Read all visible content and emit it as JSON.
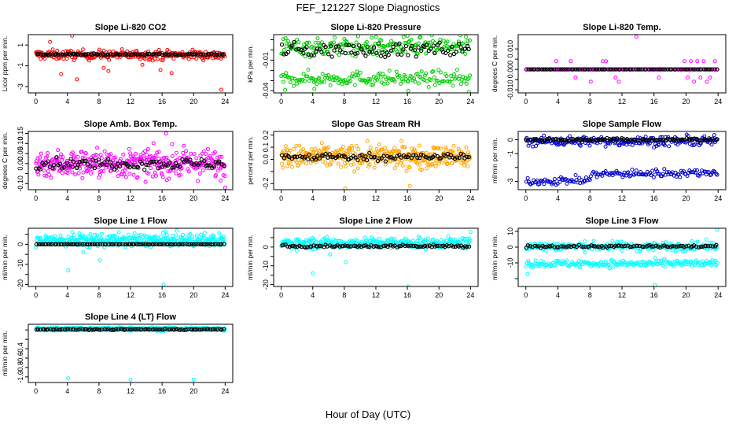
{
  "figure": {
    "title": "FEF_121227  Slope Diagnostics",
    "xlabel": "Hour of Day (UTC)",
    "x_ticks": [
      0,
      4,
      8,
      12,
      16,
      20,
      24
    ],
    "x_range": [
      0,
      24
    ]
  },
  "chart_data": [
    {
      "type": "scatter",
      "title": "Slope Li-820 CO2",
      "ylabel": "Licor ppm per min.",
      "y_ticks": [
        -3,
        -1,
        1
      ],
      "y_tick_labels": [
        "-3",
        "-1",
        "1"
      ],
      "ylim": [
        -3.6,
        2.0
      ],
      "colors": {
        "points": "#ff0000",
        "median": "#000000"
      },
      "series": [
        {
          "kind": "cloud",
          "center": 0.05,
          "spread": 0.4,
          "count": 260
        },
        {
          "kind": "median",
          "center": 0.1,
          "spread": 0.1,
          "count": 95
        },
        {
          "kind": "outliers",
          "x": [
            1.8,
            3.2,
            4.6,
            5.2,
            8.6,
            9.2,
            13.5,
            15.8,
            17.2,
            23.5
          ],
          "y": [
            1.3,
            -1.8,
            1.9,
            -2.3,
            -1.2,
            -1.5,
            -0.9,
            -1.4,
            -1.7,
            -3.3
          ]
        }
      ]
    },
    {
      "type": "scatter",
      "title": "Slope Li-820 Pressure",
      "ylabel": "kPa per min.",
      "y_ticks": [
        -0.04,
        -0.03,
        -0.02,
        -0.01,
        0.0,
        0.01
      ],
      "y_tick_labels": [
        "-0.04",
        "",
        "",
        "-0.01",
        "",
        ""
      ],
      "ylim": [
        -0.042,
        0.015
      ],
      "colors": {
        "points": "#00cc00",
        "median": "#000000"
      },
      "series": [
        {
          "kind": "cloud",
          "center": 0.003,
          "spread": 0.008,
          "count": 200
        },
        {
          "kind": "cloud",
          "center": -0.028,
          "spread": 0.006,
          "count": 170
        },
        {
          "kind": "median",
          "center": 0.0,
          "spread": 0.012,
          "count": 90
        },
        {
          "kind": "outliers",
          "x": [
            0.5,
            4.2,
            16.1,
            23.8
          ],
          "y": [
            -0.039,
            -0.038,
            -0.04,
            -0.041
          ]
        }
      ]
    },
    {
      "type": "scatter",
      "title": "Slope Li-820 Temp.",
      "ylabel": "degrees C per min.",
      "y_ticks": [
        -0.01,
        -0.005,
        0.0,
        0.005,
        0.01
      ],
      "y_tick_labels": [
        "-0.010",
        "",
        "0.000",
        "",
        "0.010"
      ],
      "ylim": [
        -0.0115,
        0.017
      ],
      "colors": {
        "points": "#ff00ff",
        "median": "#000000"
      },
      "series": [
        {
          "kind": "line-dense",
          "center": 0.0,
          "spread": 0.0,
          "count": 130
        },
        {
          "kind": "median",
          "center": 0.0,
          "spread": 0.0,
          "count": 90
        },
        {
          "kind": "outliers",
          "x": [
            3.8,
            5.6,
            6.2,
            8.1,
            9.6,
            10.0,
            11.2,
            11.6,
            13.8,
            16.6,
            19.8,
            20.2,
            20.6,
            21.0,
            21.4,
            21.8,
            22.2,
            22.6,
            23.0,
            23.6
          ],
          "y": [
            0.004,
            0.004,
            -0.004,
            -0.006,
            0.004,
            0.004,
            -0.004,
            -0.006,
            0.016,
            -0.004,
            0.004,
            -0.004,
            0.004,
            -0.006,
            0.004,
            -0.004,
            0.004,
            -0.006,
            -0.004,
            0.004
          ]
        }
      ]
    },
    {
      "type": "scatter",
      "title": "Slope Amb. Box Temp.",
      "ylabel": "degrees C per min.",
      "y_ticks": [
        -0.1,
        -0.05,
        0.0,
        0.05,
        0.1,
        0.15
      ],
      "y_tick_labels": [
        "-0.10",
        "",
        "0.00",
        "0.05",
        "0.10",
        "0.15"
      ],
      "ylim": [
        -0.13,
        0.16
      ],
      "colors": {
        "points": "#ff00ff",
        "median": "#000000"
      },
      "series": [
        {
          "kind": "cloud",
          "center": 0.0,
          "spread": 0.06,
          "count": 380
        },
        {
          "kind": "median",
          "center": 0.0,
          "spread": 0.045,
          "count": 95
        },
        {
          "kind": "outliers",
          "x": [
            16.5,
            24.0
          ],
          "y": [
            0.15,
            -0.12
          ]
        }
      ]
    },
    {
      "type": "scatter",
      "title": "Slope Gas Stream RH",
      "ylabel": "percent per min.",
      "y_ticks": [
        -0.2,
        -0.1,
        0.0,
        0.1,
        0.2
      ],
      "y_tick_labels": [
        "-0.2",
        "",
        "0.0",
        "0.1",
        "0.2"
      ],
      "ylim": [
        -0.25,
        0.23
      ],
      "colors": {
        "points": "#ffa500",
        "median": "#000000"
      },
      "series": [
        {
          "kind": "cloud",
          "center": 0.02,
          "spread": 0.08,
          "count": 380
        },
        {
          "kind": "median",
          "center": 0.02,
          "spread": 0.05,
          "count": 95
        },
        {
          "kind": "outliers",
          "x": [
            8.1,
            16.3
          ],
          "y": [
            -0.24,
            -0.22
          ]
        }
      ]
    },
    {
      "type": "scatter",
      "title": "Slope Sample Flow",
      "ylabel": "ml/min per min.",
      "y_ticks": [
        -3,
        -2,
        -1,
        0
      ],
      "y_tick_labels": [
        "-3",
        "",
        "-1",
        "0"
      ],
      "ylim": [
        -3.6,
        0.6
      ],
      "colors": {
        "points": "#0000cc",
        "median": "#000000"
      },
      "series": [
        {
          "kind": "cloud",
          "center": -0.1,
          "spread": 0.3,
          "count": 230
        },
        {
          "kind": "band-trend",
          "center": -2.6,
          "spread": 0.3,
          "count": 160
        },
        {
          "kind": "median",
          "center": 0.0,
          "spread": 0.18,
          "count": 95
        }
      ]
    },
    {
      "type": "scatter",
      "title": "Slope Line 1 Flow",
      "ylabel": "ml/min per min.",
      "y_ticks": [
        -20,
        -15,
        -10,
        -5,
        0,
        5
      ],
      "y_tick_labels": [
        "-20",
        "",
        "-10",
        "",
        "0",
        ""
      ],
      "ylim": [
        -21,
        8
      ],
      "colors": {
        "points": "#00ffff",
        "median": "#000000"
      },
      "series": [
        {
          "kind": "cloud",
          "center": 2.0,
          "spread": 2.8,
          "count": 340
        },
        {
          "kind": "median",
          "center": 0.0,
          "spread": 0.0,
          "count": 95
        },
        {
          "kind": "outliers",
          "x": [
            4.1,
            6.0,
            8.1,
            16.2
          ],
          "y": [
            -13,
            -4,
            -8,
            -20
          ]
        }
      ]
    },
    {
      "type": "scatter",
      "title": "Slope Line 2 Flow",
      "ylabel": "ml/min per min.",
      "y_ticks": [
        -20,
        -15,
        -10,
        -5,
        0,
        5
      ],
      "y_tick_labels": [
        "-20",
        "",
        "-10",
        "",
        "0",
        ""
      ],
      "ylim": [
        -21,
        10
      ],
      "colors": {
        "points": "#00ffff",
        "median": "#000000"
      },
      "series": [
        {
          "kind": "cloud",
          "center": 2.0,
          "spread": 2.5,
          "count": 320
        },
        {
          "kind": "median",
          "center": 0.5,
          "spread": 1.2,
          "count": 95
        },
        {
          "kind": "outliers",
          "x": [
            4.0,
            6.2,
            8.2,
            16.1,
            24.0
          ],
          "y": [
            -14,
            -4,
            -8,
            -21,
            8
          ]
        }
      ]
    },
    {
      "type": "scatter",
      "title": "Slope Line 3 Flow",
      "ylabel": "ml/min per min.",
      "y_ticks": [
        -20,
        -10,
        0,
        10
      ],
      "y_tick_labels": [
        "",
        "-10",
        "0",
        "10"
      ],
      "ylim": [
        -25,
        12
      ],
      "colors": {
        "points": "#00ffff",
        "median": "#000000"
      },
      "series": [
        {
          "kind": "cloud",
          "center": 0.5,
          "spread": 2.5,
          "count": 230
        },
        {
          "kind": "band-trend",
          "center": -10.5,
          "spread": 2.5,
          "count": 200
        },
        {
          "kind": "median",
          "center": 0.5,
          "spread": 1.3,
          "count": 95
        },
        {
          "kind": "outliers",
          "x": [
            0.2,
            16.1,
            23.9
          ],
          "y": [
            -17,
            -24,
            11
          ]
        }
      ]
    },
    {
      "type": "scatter",
      "title": "Slope Line 4 (LT) Flow",
      "ylabel": "ml/min per min.",
      "y_ticks": [
        -1.0,
        -0.8,
        -0.6,
        -0.4,
        -0.2,
        0.0
      ],
      "y_tick_labels": [
        "-1.0",
        "-0.8",
        "-0.6",
        "-0.4",
        "",
        ""
      ],
      "ylim": [
        -1.12,
        0.12
      ],
      "colors": {
        "points": "#00ffff",
        "median": "#000000"
      },
      "series": [
        {
          "kind": "cloud",
          "center": 0.02,
          "spread": 0.03,
          "count": 360
        },
        {
          "kind": "median",
          "center": 0.01,
          "spread": 0.02,
          "count": 95
        },
        {
          "kind": "outliers",
          "x": [
            4.1,
            12.0,
            20.0
          ],
          "y": [
            -1.03,
            -1.06,
            -1.06
          ]
        }
      ]
    }
  ]
}
